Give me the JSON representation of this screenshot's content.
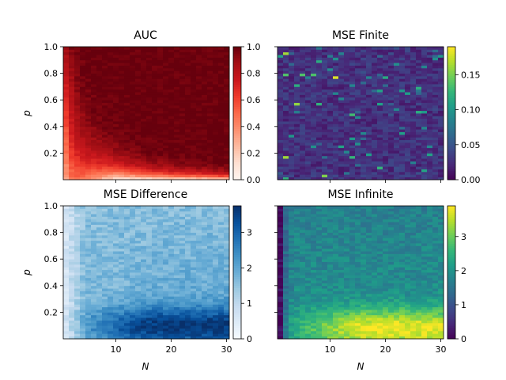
{
  "chart_data": [
    {
      "type": "heatmap",
      "title": "AUC",
      "xlabel": "",
      "ylabel": "p",
      "colormap": "Reds",
      "xlim": [
        0.5,
        30.5
      ],
      "ylim": [
        0,
        1.0
      ],
      "xticks": [
        10,
        20,
        30
      ],
      "yticks": [
        "0.2",
        "0.4",
        "0.6",
        "0.8",
        "1.0"
      ],
      "colorbar": {
        "min": 0.0,
        "max": 1.0,
        "ticks": [
          "0.0",
          "0.2",
          "0.4",
          "0.6",
          "0.8",
          "1.0"
        ]
      },
      "pattern": "value near 1.0 for large N and large p; decreases toward low p (≈0.05 at p≈0.02, N=30) and is reduced for very small N",
      "grid_size": {
        "n_values": 30,
        "p_values": 50
      }
    },
    {
      "type": "heatmap",
      "title": "MSE Finite",
      "xlabel": "",
      "ylabel": "",
      "colormap": "viridis",
      "xlim": [
        0.5,
        30.5
      ],
      "ylim": [
        0,
        1.0
      ],
      "xticks": [
        10,
        20,
        30
      ],
      "yticks": [
        "0.2",
        "0.4",
        "0.6",
        "0.8",
        "1.0"
      ],
      "colorbar": {
        "min": 0.0,
        "max": 0.19,
        "ticks": [
          "0.00",
          "0.05",
          "0.10",
          "0.15"
        ]
      },
      "pattern": "mostly low values (~0.00–0.05) with scattered noisy cells up to ~0.19, more at small N",
      "grid_size": {
        "n_values": 30,
        "p_values": 50
      }
    },
    {
      "type": "heatmap",
      "title": "MSE Difference",
      "xlabel": "N",
      "ylabel": "p",
      "colormap": "Blues",
      "xlim": [
        0.5,
        30.5
      ],
      "ylim": [
        0,
        1.0
      ],
      "xticks": [
        10,
        20,
        30
      ],
      "yticks": [
        "0.2",
        "0.4",
        "0.6",
        "0.8",
        "1.0"
      ],
      "colorbar": {
        "min": 0,
        "max": 3.75,
        "ticks": [
          "0",
          "1",
          "2",
          "3"
        ]
      },
      "pattern": "values ~1.5–2 at high p, rising to ~3.5 in a band at low p (0.05–0.2) for large N; low for small N",
      "grid_size": {
        "n_values": 30,
        "p_values": 50
      }
    },
    {
      "type": "heatmap",
      "title": "MSE Infinite",
      "xlabel": "N",
      "ylabel": "",
      "colormap": "viridis",
      "xlim": [
        0.5,
        30.5
      ],
      "ylim": [
        0,
        1.0
      ],
      "xticks": [
        10,
        20,
        30
      ],
      "yticks": [
        "0.2",
        "0.4",
        "0.6",
        "0.8",
        "1.0"
      ],
      "colorbar": {
        "min": 0,
        "max": 3.9,
        "ticks": [
          "0",
          "1",
          "2",
          "3"
        ]
      },
      "pattern": "values ~1.5–2 at high p, rising to ~3.5 at low p for large N; near 0 for N=1",
      "grid_size": {
        "n_values": 30,
        "p_values": 50
      }
    }
  ]
}
